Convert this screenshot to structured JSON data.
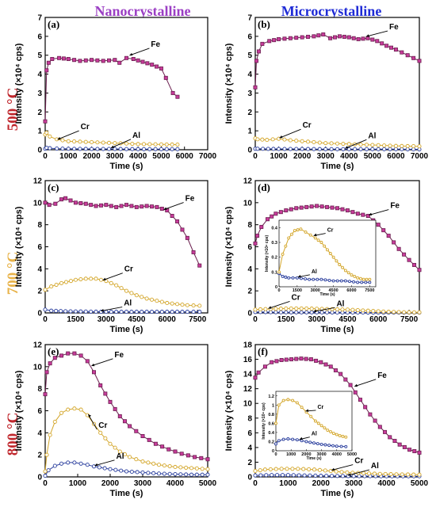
{
  "column_titles": {
    "left": "Nanocrystalline",
    "right": "Microcrystalline"
  },
  "row_labels": [
    "500 °C",
    "700 °C",
    "800 °C"
  ],
  "colors": {
    "Fe": "#6b1f4f",
    "Fe_fill": "#c83c9b",
    "Cr": "#d4a72c",
    "Al": "#2b3f9e",
    "nano_title": "#9b3fc4",
    "micro_title": "#1f2bd6",
    "row_500": "#c0272d",
    "row_700": "#e8b34a",
    "row_800": "#c0272d"
  },
  "chart_data": [
    {
      "panel": "(a)",
      "type": "line",
      "xlabel": "Time (s)",
      "ylabel": "Intensity (×10⁴ cps)",
      "xlim": [
        0,
        7000
      ],
      "ylim": [
        0,
        7
      ],
      "xticks": [
        0,
        1000,
        2000,
        3000,
        4000,
        5000,
        6000,
        7000
      ],
      "yticks": [
        0,
        1,
        2,
        3,
        4,
        5,
        6,
        7
      ],
      "series": [
        {
          "name": "Fe",
          "x": [
            0,
            60,
            150,
            300,
            600,
            1000,
            1500,
            2000,
            2500,
            3000,
            3200,
            3500,
            3800,
            4200,
            4600,
            5000,
            5200,
            5500,
            5700
          ],
          "y": [
            1.5,
            4.2,
            4.6,
            4.8,
            4.85,
            4.8,
            4.7,
            4.75,
            4.7,
            4.75,
            4.6,
            4.85,
            4.8,
            4.65,
            4.5,
            4.3,
            3.8,
            3.0,
            2.8
          ]
        },
        {
          "name": "Cr",
          "x": [
            0,
            60,
            200,
            500,
            1000,
            2000,
            3000,
            4000,
            5000,
            5700
          ],
          "y": [
            0.8,
            0.9,
            0.7,
            0.55,
            0.45,
            0.4,
            0.35,
            0.3,
            0.28,
            0.27
          ]
        },
        {
          "name": "Al",
          "x": [
            0,
            60,
            200,
            500,
            1000,
            2000,
            3000,
            4000,
            5000,
            5700
          ],
          "y": [
            0.05,
            0.1,
            0.08,
            0.06,
            0.05,
            0.04,
            0.04,
            0.03,
            0.03,
            0.03
          ]
        }
      ]
    },
    {
      "panel": "(b)",
      "type": "line",
      "xlabel": "Time (s)",
      "ylabel": "Intensity (×10⁴ cps)",
      "xlim": [
        0,
        7000
      ],
      "ylim": [
        0,
        7
      ],
      "xticks": [
        0,
        1000,
        2000,
        3000,
        4000,
        5000,
        6000,
        7000
      ],
      "yticks": [
        0,
        1,
        2,
        3,
        4,
        5,
        6,
        7
      ],
      "series": [
        {
          "name": "Fe",
          "x": [
            0,
            50,
            150,
            300,
            600,
            1000,
            1500,
            2000,
            2500,
            2900,
            3200,
            3600,
            4000,
            4400,
            4800,
            5200,
            5600,
            6000,
            6500,
            7000
          ],
          "y": [
            3.3,
            4.7,
            5.2,
            5.6,
            5.75,
            5.85,
            5.9,
            5.95,
            6.0,
            6.1,
            5.9,
            6.0,
            5.95,
            5.85,
            5.9,
            5.75,
            5.5,
            5.3,
            5.0,
            4.7
          ]
        },
        {
          "name": "Cr",
          "x": [
            0,
            100,
            500,
            1000,
            1500,
            2000,
            3000,
            4000,
            5000,
            6000,
            7000
          ],
          "y": [
            0.6,
            0.55,
            0.52,
            0.58,
            0.5,
            0.45,
            0.35,
            0.3,
            0.25,
            0.2,
            0.18
          ]
        },
        {
          "name": "Al",
          "x": [
            0,
            100,
            1000,
            2000,
            3000,
            4000,
            5000,
            6000,
            7000
          ],
          "y": [
            0.05,
            0.05,
            0.04,
            0.04,
            0.03,
            0.03,
            0.03,
            0.03,
            0.02
          ]
        }
      ]
    },
    {
      "panel": "(c)",
      "type": "line",
      "xlabel": "Time (s)",
      "ylabel": "Intensity (×10⁴ cps)",
      "xlim": [
        0,
        8000
      ],
      "ylim": [
        0,
        12
      ],
      "xticks": [
        0,
        1500,
        3000,
        4500,
        6000,
        7500
      ],
      "yticks": [
        0,
        2,
        4,
        6,
        8,
        10,
        12
      ],
      "series": [
        {
          "name": "Fe",
          "x": [
            0,
            200,
            500,
            800,
            1000,
            1500,
            2000,
            2500,
            3000,
            3500,
            4000,
            4500,
            5000,
            5500,
            6000,
            6500,
            7000,
            7300,
            7600
          ],
          "y": [
            10.0,
            9.8,
            9.9,
            10.3,
            10.4,
            10.0,
            9.9,
            9.7,
            9.8,
            9.6,
            9.8,
            9.6,
            9.7,
            9.6,
            9.3,
            8.3,
            6.8,
            5.5,
            4.3
          ]
        },
        {
          "name": "Cr",
          "x": [
            0,
            300,
            800,
            1500,
            2000,
            2500,
            3000,
            3500,
            4000,
            4500,
            5000,
            5500,
            6000,
            6500,
            7000,
            7600
          ],
          "y": [
            2.1,
            2.4,
            2.7,
            3.0,
            3.1,
            3.1,
            2.9,
            2.5,
            2.0,
            1.6,
            1.3,
            1.1,
            0.9,
            0.8,
            0.7,
            0.65
          ]
        },
        {
          "name": "Al",
          "x": [
            0,
            300,
            1000,
            2000,
            3000,
            4000,
            5000,
            6000,
            7000,
            7600
          ],
          "y": [
            0.3,
            0.2,
            0.15,
            0.12,
            0.1,
            0.1,
            0.1,
            0.1,
            0.1,
            0.1
          ]
        }
      ]
    },
    {
      "panel": "(d)",
      "type": "line",
      "xlabel": "Time (s)",
      "ylabel": "Intensity (×10⁴ cps)",
      "xlim": [
        0,
        8000
      ],
      "ylim": [
        0,
        12
      ],
      "xticks": [
        0,
        1500,
        3000,
        4500,
        6000,
        7500
      ],
      "yticks": [
        0,
        2,
        4,
        6,
        8,
        10,
        12
      ],
      "series": [
        {
          "name": "Fe",
          "x": [
            0,
            100,
            300,
            600,
            1000,
            1500,
            2000,
            2500,
            3000,
            3500,
            4000,
            4500,
            5000,
            5500,
            6000,
            6500,
            7000,
            7500,
            8000
          ],
          "y": [
            6.3,
            7.0,
            7.8,
            8.5,
            9.0,
            9.3,
            9.5,
            9.6,
            9.7,
            9.6,
            9.5,
            9.3,
            9.0,
            8.8,
            8.0,
            7.0,
            5.8,
            4.8,
            3.9
          ]
        },
        {
          "name": "Cr",
          "x": [
            0,
            500,
            1500,
            2500,
            3500,
            4500,
            5500,
            6500,
            7500,
            8000
          ],
          "y": [
            0.3,
            0.35,
            0.4,
            0.4,
            0.35,
            0.3,
            0.2,
            0.1,
            0.05,
            0.05
          ]
        },
        {
          "name": "Al",
          "x": [
            0,
            1000,
            2000,
            3000,
            4000,
            5000,
            6000,
            7000,
            8000
          ],
          "y": [
            0.08,
            0.06,
            0.05,
            0.05,
            0.04,
            0.04,
            0.03,
            0.03,
            0.03
          ]
        }
      ],
      "inset": {
        "xlabel": "Time (s)",
        "ylabel": "Intensity (×10⁴ cps)",
        "xlim": [
          0,
          8000
        ],
        "ylim": [
          0,
          0.45
        ],
        "xticks": [
          0,
          1500,
          3000,
          4500,
          6000,
          7500
        ],
        "yticks": [
          0.0,
          0.1,
          0.2,
          0.3,
          0.4
        ],
        "series": [
          {
            "name": "Cr",
            "x": [
              0,
              300,
              800,
              1300,
              1800,
              2200,
              2600,
              3000,
              3500,
              4000,
              4500,
              5000,
              5500,
              6000,
              6500,
              7000,
              7500
            ],
            "y": [
              0.1,
              0.22,
              0.33,
              0.38,
              0.39,
              0.37,
              0.35,
              0.33,
              0.3,
              0.25,
              0.2,
              0.15,
              0.11,
              0.08,
              0.06,
              0.05,
              0.05
            ]
          },
          {
            "name": "Al",
            "x": [
              0,
              300,
              800,
              1500,
              2500,
              3500,
              4500,
              5500,
              6500,
              7500
            ],
            "y": [
              0.09,
              0.07,
              0.06,
              0.06,
              0.05,
              0.05,
              0.04,
              0.04,
              0.03,
              0.03
            ]
          }
        ]
      }
    },
    {
      "panel": "(e)",
      "type": "line",
      "xlabel": "Time (s)",
      "ylabel": "Intensity (×10⁴ cps)",
      "xlim": [
        0,
        5000
      ],
      "ylim": [
        0,
        12
      ],
      "xticks": [
        0,
        1000,
        2000,
        3000,
        4000,
        5000
      ],
      "yticks": [
        0,
        2,
        4,
        6,
        8,
        10,
        12
      ],
      "series": [
        {
          "name": "Fe",
          "x": [
            0,
            50,
            150,
            300,
            500,
            700,
            900,
            1100,
            1300,
            1500,
            1700,
            2000,
            2300,
            2600,
            3000,
            3400,
            3800,
            4200,
            4600,
            5000
          ],
          "y": [
            7.5,
            9.5,
            10.3,
            10.8,
            11.0,
            11.2,
            11.2,
            11.0,
            10.5,
            9.5,
            8.3,
            6.8,
            5.5,
            4.6,
            3.7,
            3.0,
            2.5,
            2.1,
            1.8,
            1.6
          ]
        },
        {
          "name": "Cr",
          "x": [
            0,
            50,
            150,
            300,
            500,
            700,
            900,
            1100,
            1300,
            1500,
            1700,
            2000,
            2300,
            2600,
            3000,
            3500,
            4000,
            4500,
            5000
          ],
          "y": [
            0.5,
            2.0,
            3.8,
            5.0,
            5.8,
            6.1,
            6.2,
            6.1,
            5.6,
            4.8,
            4.0,
            3.0,
            2.3,
            1.8,
            1.4,
            1.1,
            0.9,
            0.8,
            0.7
          ]
        },
        {
          "name": "Al",
          "x": [
            0,
            100,
            300,
            500,
            700,
            900,
            1100,
            1300,
            1500,
            2000,
            2500,
            3000,
            3500,
            4000,
            4500,
            5000
          ],
          "y": [
            0.1,
            0.6,
            1.0,
            1.2,
            1.3,
            1.3,
            1.2,
            1.1,
            0.95,
            0.7,
            0.5,
            0.4,
            0.3,
            0.25,
            0.2,
            0.2
          ]
        }
      ]
    },
    {
      "panel": "(f)",
      "type": "line",
      "xlabel": "Time (s)",
      "ylabel": "Intensity (×10⁴ cps)",
      "xlim": [
        0,
        5000
      ],
      "ylim": [
        0,
        18
      ],
      "xticks": [
        0,
        1000,
        2000,
        3000,
        4000,
        5000
      ],
      "yticks": [
        0,
        2,
        4,
        6,
        8,
        10,
        12,
        14,
        16,
        18
      ],
      "series": [
        {
          "name": "Fe",
          "x": [
            0,
            100,
            300,
            500,
            800,
            1100,
            1400,
            1700,
            2000,
            2300,
            2600,
            2900,
            3200,
            3500,
            3800,
            4100,
            4400,
            4700,
            5000
          ],
          "y": [
            13.5,
            14.2,
            15.0,
            15.6,
            15.9,
            16.0,
            16.1,
            16.0,
            15.6,
            15.0,
            14.0,
            12.5,
            10.5,
            8.5,
            6.8,
            5.4,
            4.4,
            3.7,
            3.3
          ]
        },
        {
          "name": "Cr",
          "x": [
            0,
            300,
            800,
            1300,
            1800,
            2300,
            2800,
            3300,
            3800,
            4300,
            5000
          ],
          "y": [
            0.8,
            1.0,
            1.1,
            1.1,
            1.0,
            0.8,
            0.6,
            0.5,
            0.4,
            0.35,
            0.3
          ]
        },
        {
          "name": "Al",
          "x": [
            0,
            500,
            1000,
            1500,
            2000,
            2500,
            3000,
            3500,
            4000,
            5000
          ],
          "y": [
            0.2,
            0.25,
            0.25,
            0.2,
            0.15,
            0.12,
            0.1,
            0.1,
            0.08,
            0.08
          ]
        }
      ],
      "inset": {
        "xlabel": "Time (s)",
        "ylabel": "Intensity (×10⁴ cps)",
        "xlim": [
          0,
          5000
        ],
        "ylim": [
          0,
          1.3
        ],
        "xticks": [
          0,
          1000,
          2000,
          3000,
          4000,
          5000
        ],
        "yticks": [
          0.0,
          0.2,
          0.4,
          0.6,
          0.8,
          1.0,
          1.2
        ],
        "series": [
          {
            "name": "Cr",
            "x": [
              0,
              200,
              500,
              800,
              1100,
              1400,
              1700,
              2000,
              2300,
              2600,
              3000,
              3400,
              3800,
              4200,
              4600
            ],
            "y": [
              0.6,
              1.0,
              1.1,
              1.12,
              1.1,
              1.05,
              0.95,
              0.85,
              0.75,
              0.65,
              0.55,
              0.45,
              0.38,
              0.33,
              0.3
            ]
          },
          {
            "name": "Al",
            "x": [
              0,
              200,
              500,
              800,
              1100,
              1400,
              1700,
              2000,
              2500,
              3000,
              3500,
              4000,
              4600
            ],
            "y": [
              0.15,
              0.22,
              0.25,
              0.26,
              0.25,
              0.24,
              0.22,
              0.2,
              0.17,
              0.14,
              0.12,
              0.1,
              0.09
            ]
          }
        ]
      }
    }
  ]
}
